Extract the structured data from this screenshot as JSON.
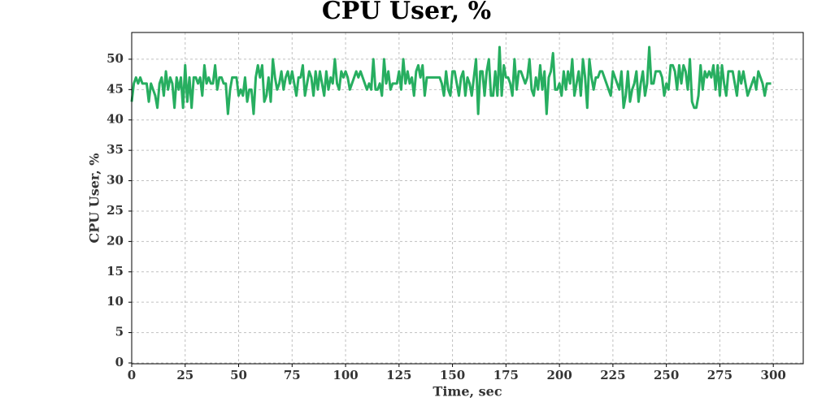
{
  "chart_data": {
    "type": "line",
    "title": "CPU User, %",
    "xlabel": "Time, sec",
    "ylabel": "CPU User, %",
    "x": [
      0,
      1,
      2,
      3,
      4,
      5,
      6,
      7,
      8,
      9,
      10,
      11,
      12,
      13,
      14,
      15,
      16,
      17,
      18,
      19,
      20,
      21,
      22,
      23,
      24,
      25,
      26,
      27,
      28,
      29,
      30,
      31,
      32,
      33,
      34,
      35,
      36,
      37,
      38,
      39,
      40,
      41,
      42,
      43,
      44,
      45,
      46,
      47,
      48,
      49,
      50,
      51,
      52,
      53,
      54,
      55,
      56,
      57,
      58,
      59,
      60,
      61,
      62,
      63,
      64,
      65,
      66,
      67,
      68,
      69,
      70,
      71,
      72,
      73,
      74,
      75,
      76,
      77,
      78,
      79,
      80,
      81,
      82,
      83,
      84,
      85,
      86,
      87,
      88,
      89,
      90,
      91,
      92,
      93,
      94,
      95,
      96,
      97,
      98,
      99,
      100,
      101,
      102,
      103,
      104,
      105,
      106,
      107,
      108,
      109,
      110,
      111,
      112,
      113,
      114,
      115,
      116,
      117,
      118,
      119,
      120,
      121,
      122,
      123,
      124,
      125,
      126,
      127,
      128,
      129,
      130,
      131,
      132,
      133,
      134,
      135,
      136,
      137,
      138,
      139,
      140,
      141,
      142,
      143,
      144,
      145,
      146,
      147,
      148,
      149,
      150,
      151,
      152,
      153,
      154,
      155,
      156,
      157,
      158,
      159,
      160,
      161,
      162,
      163,
      164,
      165,
      166,
      167,
      168,
      169,
      170,
      171,
      172,
      173,
      174,
      175,
      176,
      177,
      178,
      179,
      180,
      181,
      182,
      183,
      184,
      185,
      186,
      187,
      188,
      189,
      190,
      191,
      192,
      193,
      194,
      195,
      196,
      197,
      198,
      199,
      200,
      201,
      202,
      203,
      204,
      205,
      206,
      207,
      208,
      209,
      210,
      211,
      212,
      213,
      214,
      215,
      216,
      217,
      218,
      219,
      220,
      221,
      222,
      223,
      224,
      225,
      226,
      227,
      228,
      229,
      230,
      231,
      232,
      233,
      234,
      235,
      236,
      237,
      238,
      239,
      240,
      241,
      242,
      243,
      244,
      245,
      246,
      247,
      248,
      249,
      250,
      251,
      252,
      253,
      254,
      255,
      256,
      257,
      258,
      259,
      260,
      261,
      262,
      263,
      264,
      265,
      266,
      267,
      268,
      269,
      270,
      271,
      272,
      273,
      274,
      275,
      276,
      277,
      278,
      279,
      280,
      281,
      282,
      283,
      284,
      285,
      286,
      287,
      288,
      289,
      290,
      291,
      292,
      293,
      294,
      295,
      296,
      297,
      298,
      299
    ],
    "series": [
      {
        "name": "CPU User",
        "color": "#27ae60",
        "values": [
          43,
          46,
          47,
          46,
          47,
          46,
          46,
          46,
          43,
          46,
          45,
          44,
          42,
          46,
          47,
          44,
          48,
          45,
          47,
          46,
          42,
          47,
          45,
          47,
          42,
          49,
          43,
          47,
          42,
          47,
          47,
          46,
          47,
          44,
          49,
          46,
          47,
          46,
          46,
          49,
          45,
          47,
          47,
          46,
          46,
          41,
          45,
          47,
          47,
          47,
          44,
          45,
          44,
          47,
          43,
          45,
          45,
          41,
          47,
          49,
          47,
          49,
          43,
          44,
          47,
          43,
          50,
          47,
          45,
          46,
          48,
          45,
          47,
          48,
          46,
          48,
          46,
          44,
          47,
          47,
          49,
          44,
          46,
          48,
          47,
          44,
          48,
          45,
          48,
          46,
          44,
          48,
          45,
          47,
          46,
          50,
          46,
          45,
          48,
          47,
          48,
          47,
          45,
          46,
          47,
          48,
          47,
          48,
          47,
          46,
          45,
          46,
          45,
          50,
          45,
          45,
          46,
          44,
          50,
          46,
          48,
          45,
          46,
          46,
          46,
          48,
          45,
          50,
          46,
          48,
          46,
          47,
          44,
          48,
          49,
          47,
          49,
          44,
          47,
          47,
          47,
          47,
          47,
          47,
          47,
          46,
          44,
          48,
          45,
          44,
          48,
          48,
          46,
          44,
          47,
          48,
          44,
          47,
          46,
          44,
          47,
          50,
          41,
          48,
          48,
          44,
          48,
          50,
          44,
          44,
          48,
          44,
          52,
          44,
          49,
          47,
          47,
          46,
          44,
          50,
          45,
          48,
          48,
          47,
          46,
          47,
          50,
          45,
          44,
          47,
          45,
          49,
          45,
          48,
          41,
          47,
          48,
          51,
          45,
          45,
          46,
          44,
          48,
          45,
          48,
          46,
          50,
          44,
          46,
          48,
          44,
          50,
          47,
          42,
          50,
          47,
          45,
          47,
          47,
          48,
          48,
          47,
          46,
          45,
          44,
          48,
          47,
          46,
          45,
          48,
          42,
          44,
          48,
          43,
          45,
          46,
          48,
          43,
          46,
          48,
          44,
          46,
          52,
          46,
          46,
          48,
          48,
          48,
          47,
          44,
          46,
          45,
          49,
          49,
          48,
          45,
          49,
          46,
          49,
          48,
          45,
          50,
          43,
          42,
          42,
          44,
          49,
          45,
          48,
          47,
          48,
          47,
          49,
          45,
          49,
          44,
          49,
          46,
          44,
          48,
          48,
          48,
          46,
          44,
          48,
          46,
          48,
          46,
          44,
          45,
          46,
          47,
          45,
          48,
          47,
          46,
          44,
          46,
          46,
          46
        ]
      }
    ],
    "xlim": [
      0,
      314
    ],
    "ylim": [
      0,
      54.4
    ],
    "xticks": [
      0,
      25,
      50,
      75,
      100,
      125,
      150,
      175,
      200,
      225,
      250,
      275,
      300
    ],
    "yticks": [
      0,
      5,
      10,
      15,
      20,
      25,
      30,
      35,
      40,
      45,
      50
    ],
    "grid": true
  }
}
